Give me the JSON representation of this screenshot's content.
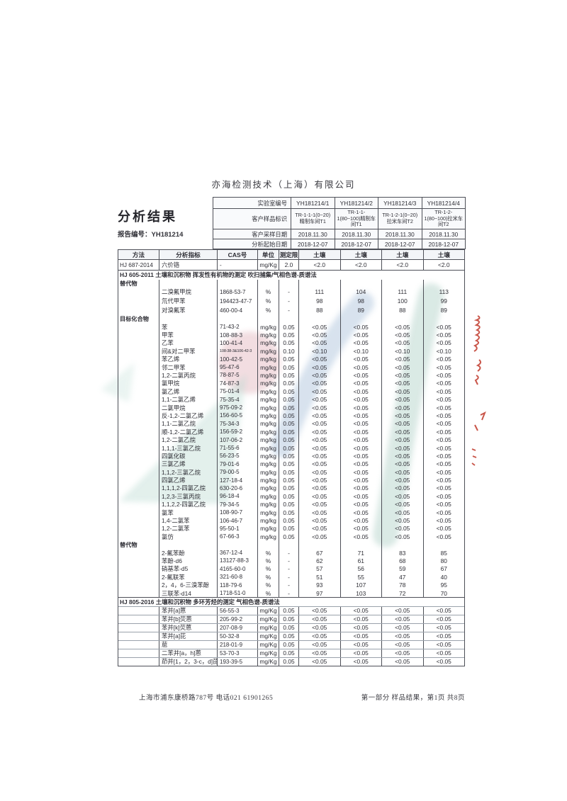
{
  "page": {
    "company": "亦海检测技术（上海）有限公司",
    "title": "分析结果",
    "report_no": "报告编号：YH181214",
    "footer_left": "上海市浦东康桥路787号  电话021 61901265",
    "footer_right": "第一部分 样品结果，第1页 共8页"
  },
  "colors": {
    "watermark_blue": "#aec5dc",
    "watermark_teal": "#aed0c5",
    "watermark_pink": "#e2b4bb",
    "annotation_red": "#c0392b",
    "table_line": "#4d4f57"
  },
  "info_table": {
    "rows": [
      {
        "label": "实验室编号",
        "values": [
          "YH181214/1",
          "YH181214/2",
          "YH181214/3",
          "YH181214/4"
        ]
      },
      {
        "label": "客户样品标识",
        "values": [
          "TR-1-1-1(0~20)精制车间T1",
          "TR-1-1-1(80~100)精制车间T1",
          "TR-1-2-1(0~20)拉米车间T2",
          "TR-1-2-1(80~100)拉米车间T2"
        ]
      },
      {
        "label": "客户采样日期",
        "values": [
          "2018.11.30",
          "2018.11.30",
          "2018.11.30",
          "2018.11.30"
        ]
      },
      {
        "label": "分析起始日期",
        "values": [
          "2018-12-07",
          "2018-12-07",
          "2018-12-07",
          "2018-12-07"
        ]
      }
    ]
  },
  "results_table": {
    "headers": [
      "方法",
      "分析指标",
      "CAS号",
      "单位",
      "测定限",
      "土壤",
      "土壤",
      "土壤",
      "土壤"
    ],
    "rows": [
      {
        "type": "data",
        "cls": "first",
        "method": "HJ 687-2014",
        "analyte": "六价铬",
        "cas": "-",
        "unit": "mg/Kg",
        "limit": "2.0",
        "values": [
          "<2.0",
          "<2.0",
          "<2.0",
          "<2.0"
        ]
      },
      {
        "type": "section",
        "text": "HJ 605-2011 土壤和沉积物 挥发性有机物的测定 吹扫捕集/气相色谱-质谱法"
      },
      {
        "type": "group",
        "text": "替代物"
      },
      {
        "type": "data",
        "cls": "surrA",
        "analyte": "二溴氟甲烷",
        "cas": "1868-53-7",
        "unit": "%",
        "limit": "-",
        "values": [
          "111",
          "104",
          "111",
          "113"
        ]
      },
      {
        "type": "data",
        "cls": "surrA",
        "analyte": "氘代甲苯",
        "cas": "194423-47-7",
        "unit": "%",
        "limit": "-",
        "values": [
          "98",
          "98",
          "100",
          "99"
        ]
      },
      {
        "type": "data",
        "cls": "surrA",
        "analyte": "对溴氟苯",
        "cas": "460-00-4",
        "unit": "%",
        "limit": "-",
        "values": [
          "88",
          "89",
          "88",
          "89"
        ]
      },
      {
        "type": "group",
        "text": "目标化合物"
      },
      {
        "type": "data",
        "analyte": "苯",
        "cas": "71-43-2",
        "unit": "mg/kg",
        "limit": "0.05",
        "values": [
          "<0.05",
          "<0.05",
          "<0.05",
          "<0.05"
        ]
      },
      {
        "type": "data",
        "analyte": "甲苯",
        "cas": "108-88-3",
        "unit": "mg/kg",
        "limit": "0.05",
        "values": [
          "<0.05",
          "<0.05",
          "<0.05",
          "<0.05"
        ]
      },
      {
        "type": "data",
        "analyte": "乙苯",
        "cas": "100-41-4",
        "unit": "mg/kg",
        "limit": "0.05",
        "values": [
          "<0.05",
          "<0.05",
          "<0.05",
          "<0.05"
        ]
      },
      {
        "type": "data",
        "cas_small": true,
        "analyte": "间&对二甲苯",
        "cas": "108-38-3&106-42-3",
        "unit": "mg/kg",
        "limit": "0.10",
        "values": [
          "<0.10",
          "<0.10",
          "<0.10",
          "<0.10"
        ]
      },
      {
        "type": "data",
        "analyte": "苯乙烯",
        "cas": "100-42-5",
        "unit": "mg/kg",
        "limit": "0.05",
        "values": [
          "<0.05",
          "<0.05",
          "<0.05",
          "<0.05"
        ]
      },
      {
        "type": "data",
        "analyte": "邻二甲苯",
        "cas": "95-47-6",
        "unit": "mg/kg",
        "limit": "0.05",
        "values": [
          "<0.05",
          "<0.05",
          "<0.05",
          "<0.05"
        ]
      },
      {
        "type": "data",
        "analyte": "1,2-二氯丙烷",
        "cas": "78-87-5",
        "unit": "mg/kg",
        "limit": "0.05",
        "values": [
          "<0.05",
          "<0.05",
          "<0.05",
          "<0.05"
        ]
      },
      {
        "type": "data",
        "analyte": "氯甲烷",
        "cas": "74-87-3",
        "unit": "mg/kg",
        "limit": "0.05",
        "values": [
          "<0.05",
          "<0.05",
          "<0.05",
          "<0.05"
        ]
      },
      {
        "type": "data",
        "analyte": "氯乙烯",
        "cas": "75-01-4",
        "unit": "mg/kg",
        "limit": "0.05",
        "values": [
          "<0.05",
          "<0.05",
          "<0.05",
          "<0.05"
        ]
      },
      {
        "type": "data",
        "analyte": "1,1-二氯乙烯",
        "cas": "75-35-4",
        "unit": "mg/kg",
        "limit": "0.05",
        "values": [
          "<0.05",
          "<0.05",
          "<0.05",
          "<0.05"
        ]
      },
      {
        "type": "data",
        "analyte": "二氯甲烷",
        "cas": "975-09-2",
        "unit": "mg/kg",
        "limit": "0.05",
        "values": [
          "<0.05",
          "<0.05",
          "<0.05",
          "<0.05"
        ]
      },
      {
        "type": "data",
        "analyte": "反-1,2-二氯乙烯",
        "cas": "156-60-5",
        "unit": "mg/kg",
        "limit": "0.05",
        "values": [
          "<0.05",
          "<0.05",
          "<0.05",
          "<0.05"
        ]
      },
      {
        "type": "data",
        "analyte": "1,1-二氯乙烷",
        "cas": "75-34-3",
        "unit": "mg/kg",
        "limit": "0.05",
        "values": [
          "<0.05",
          "<0.05",
          "<0.05",
          "<0.05"
        ]
      },
      {
        "type": "data",
        "analyte": "顺-1,2-二氯乙烯",
        "cas": "156-59-2",
        "unit": "mg/kg",
        "limit": "0.05",
        "values": [
          "<0.05",
          "<0.05",
          "<0.05",
          "<0.05"
        ]
      },
      {
        "type": "data",
        "analyte": "1,2-二氯乙烷",
        "cas": "107-06-2",
        "unit": "mg/kg",
        "limit": "0.05",
        "values": [
          "<0.05",
          "<0.05",
          "<0.05",
          "<0.05"
        ]
      },
      {
        "type": "data",
        "analyte": "1,1,1-三氯乙烷",
        "cas": "71-55-6",
        "unit": "mg/kg",
        "limit": "0.05",
        "values": [
          "<0.05",
          "<0.05",
          "<0.05",
          "<0.05"
        ]
      },
      {
        "type": "data",
        "analyte": "四氯化碳",
        "cas": "56-23-5",
        "unit": "mg/kg",
        "limit": "0.05",
        "values": [
          "<0.05",
          "<0.05",
          "<0.05",
          "<0.05"
        ]
      },
      {
        "type": "data",
        "analyte": "三氯乙烯",
        "cas": "79-01-6",
        "unit": "mg/kg",
        "limit": "0.05",
        "values": [
          "<0.05",
          "<0.05",
          "<0.05",
          "<0.05"
        ]
      },
      {
        "type": "data",
        "analyte": "1,1,2-三氯乙烷",
        "cas": "79-00-5",
        "unit": "mg/kg",
        "limit": "0.05",
        "values": [
          "<0.05",
          "<0.05",
          "<0.05",
          "<0.05"
        ]
      },
      {
        "type": "data",
        "analyte": "四氯乙烯",
        "cas": "127-18-4",
        "unit": "mg/kg",
        "limit": "0.05",
        "values": [
          "<0.05",
          "<0.05",
          "<0.05",
          "<0.05"
        ]
      },
      {
        "type": "data",
        "analyte": "1,1,1,2-四氯乙烷",
        "cas": "630-20-6",
        "unit": "mg/kg",
        "limit": "0.05",
        "values": [
          "<0.05",
          "<0.05",
          "<0.05",
          "<0.05"
        ]
      },
      {
        "type": "data",
        "analyte": "1,2,3-三氯丙烷",
        "cas": "96-18-4",
        "unit": "mg/kg",
        "limit": "0.05",
        "values": [
          "<0.05",
          "<0.05",
          "<0.05",
          "<0.05"
        ]
      },
      {
        "type": "data",
        "analyte": "1,1,2,2-四氯乙烷",
        "cas": "79-34-5",
        "unit": "mg/kg",
        "limit": "0.05",
        "values": [
          "<0.05",
          "<0.05",
          "<0.05",
          "<0.05"
        ]
      },
      {
        "type": "data",
        "analyte": "氯苯",
        "cas": "108-90-7",
        "unit": "mg/kg",
        "limit": "0.05",
        "values": [
          "<0.05",
          "<0.05",
          "<0.05",
          "<0.05"
        ]
      },
      {
        "type": "data",
        "analyte": "1,4-二氯苯",
        "cas": "106-46-7",
        "unit": "mg/kg",
        "limit": "0.05",
        "values": [
          "<0.05",
          "<0.05",
          "<0.05",
          "<0.05"
        ]
      },
      {
        "type": "data",
        "analyte": "1,2-二氯苯",
        "cas": "95-50-1",
        "unit": "mg/kg",
        "limit": "0.05",
        "values": [
          "<0.05",
          "<0.05",
          "<0.05",
          "<0.05"
        ]
      },
      {
        "type": "data",
        "analyte": "氯仿",
        "cas": "67-66-3",
        "unit": "mg/kg",
        "limit": "0.05",
        "values": [
          "<0.05",
          "<0.05",
          "<0.05",
          "<0.05"
        ]
      },
      {
        "type": "group",
        "text": "替代物"
      },
      {
        "type": "data",
        "analyte": "2-氟苯酚",
        "cas": "367-12-4",
        "unit": "%",
        "limit": "-",
        "values": [
          "67",
          "71",
          "83",
          "85"
        ]
      },
      {
        "type": "data",
        "analyte": "苯酚-d6",
        "cas": "13127-88-3",
        "unit": "%",
        "limit": "-",
        "values": [
          "62",
          "61",
          "68",
          "80"
        ]
      },
      {
        "type": "data",
        "analyte": "硝基苯-d5",
        "cas": "4165-60-0",
        "unit": "%",
        "limit": "-",
        "values": [
          "57",
          "56",
          "59",
          "67"
        ]
      },
      {
        "type": "data",
        "analyte": "2-氟联苯",
        "cas": "321-60-8",
        "unit": "%",
        "limit": "-",
        "values": [
          "51",
          "55",
          "47",
          "40"
        ]
      },
      {
        "type": "data",
        "analyte": "2，4，6-三溴苯酚",
        "cas": "118-79-6",
        "unit": "%",
        "limit": "-",
        "values": [
          "93",
          "107",
          "78",
          "95"
        ]
      },
      {
        "type": "data",
        "analyte": "三联苯-d14",
        "cas": "1718-51-0",
        "unit": "%",
        "limit": "-",
        "values": [
          "97",
          "103",
          "72",
          "70"
        ]
      },
      {
        "type": "section",
        "cls": "sec2",
        "text": "HJ 805-2016 土壤和沉积物 多环芳烃的测定 气相色谱-质谱法"
      },
      {
        "type": "data",
        "cls": "lined",
        "analyte": "苯并[a]蒽",
        "cas": "56-55-3",
        "unit": "mg/Kg",
        "limit": "0.05",
        "values": [
          "<0.05",
          "<0.05",
          "<0.05",
          "<0.05"
        ]
      },
      {
        "type": "data",
        "cls": "lined",
        "analyte": "苯并[b]荧蒽",
        "cas": "205-99-2",
        "unit": "mg/Kg",
        "limit": "0.05",
        "values": [
          "<0.05",
          "<0.05",
          "<0.05",
          "<0.05"
        ]
      },
      {
        "type": "data",
        "cls": "lined",
        "analyte": "苯并[k]荧蒽",
        "cas": "207-08-9",
        "unit": "mg/Kg",
        "limit": "0.05",
        "values": [
          "<0.05",
          "<0.05",
          "<0.05",
          "<0.05"
        ]
      },
      {
        "type": "data",
        "cls": "lined",
        "analyte": "苯并[a]芘",
        "cas": "50-32-8",
        "unit": "mg/Kg",
        "limit": "0.05",
        "values": [
          "<0.05",
          "<0.05",
          "<0.05",
          "<0.05"
        ]
      },
      {
        "type": "data",
        "cls": "lined",
        "analyte": "䓛",
        "cas": "218-01-9",
        "unit": "mg/Kg",
        "limit": "0.05",
        "values": [
          "<0.05",
          "<0.05",
          "<0.05",
          "<0.05"
        ]
      },
      {
        "type": "data",
        "cls": "lined",
        "analyte": "二苯并[a，h]蒽",
        "cas": "53-70-3",
        "unit": "mg/Kg",
        "limit": "0.05",
        "values": [
          "<0.05",
          "<0.05",
          "<0.05",
          "<0.05"
        ]
      },
      {
        "type": "data",
        "cls": "lined",
        "analyte": "茚并[1，2，3-c，d]芘",
        "cas": "193-39-5",
        "unit": "mg/Kg",
        "limit": "0.05",
        "values": [
          "<0.05",
          "<0.05",
          "<0.05",
          "<0.05"
        ]
      }
    ]
  }
}
